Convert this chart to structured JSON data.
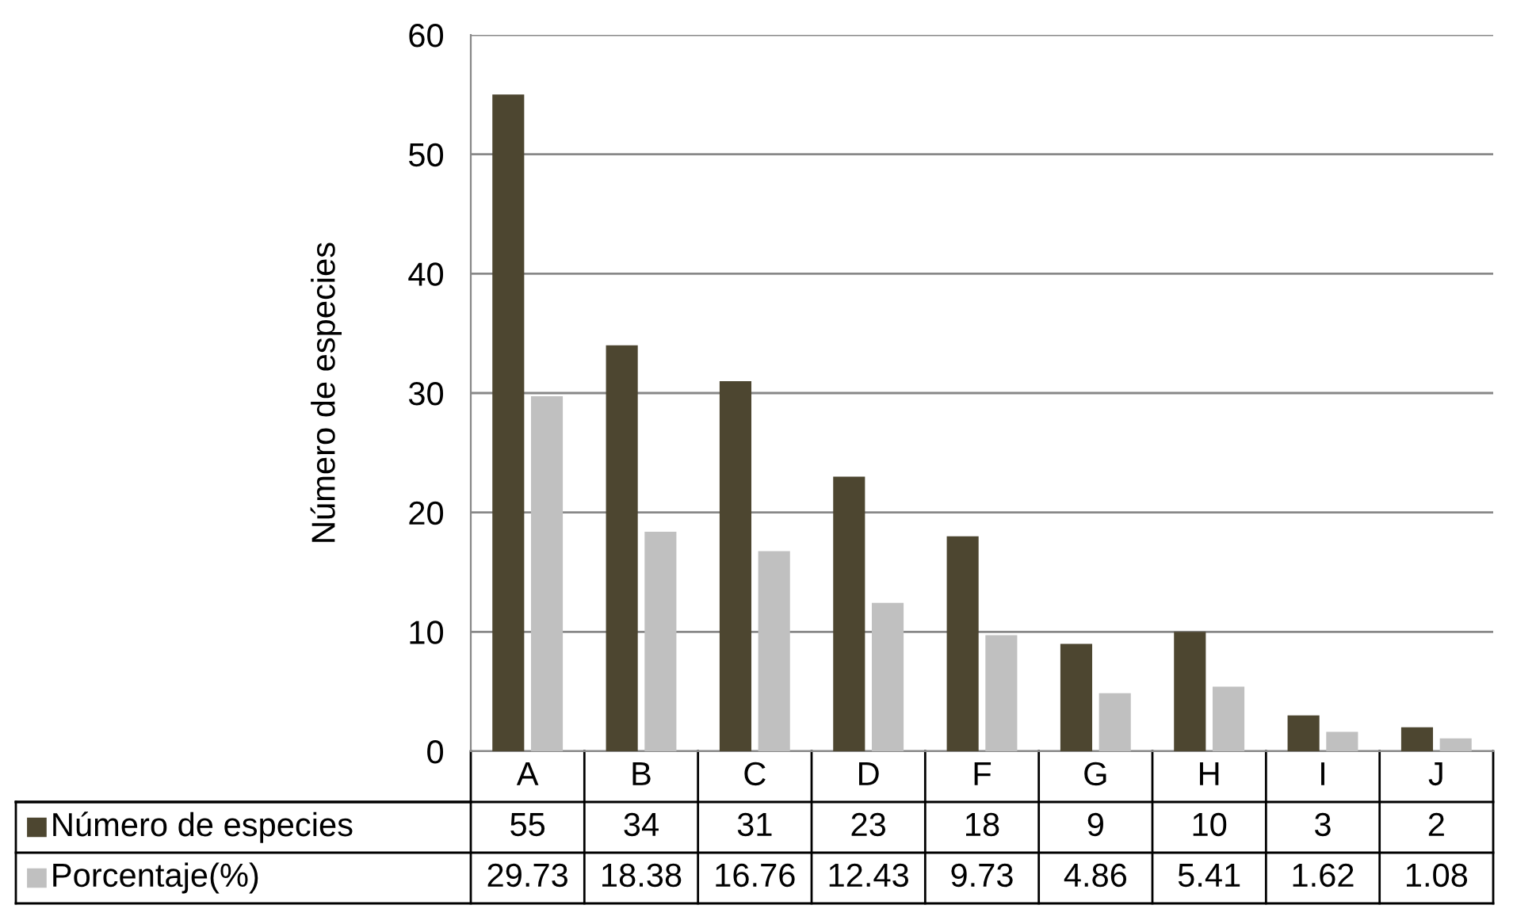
{
  "chart_data": {
    "type": "bar",
    "ylabel": "Número de especies",
    "categories": [
      "A",
      "B",
      "C",
      "D",
      "F",
      "G",
      "H",
      "I",
      "J"
    ],
    "series": [
      {
        "name": "Número de especies",
        "color": "#4d4630",
        "values": [
          55,
          34,
          31,
          23,
          18,
          9,
          10,
          3,
          2
        ]
      },
      {
        "name": "Porcentaje(%)",
        "color": "#c0c0c0",
        "values": [
          29.73,
          18.38,
          16.76,
          12.43,
          9.73,
          4.86,
          5.41,
          1.62,
          1.08
        ]
      }
    ],
    "ylim": [
      0,
      60
    ],
    "yticks": [
      0,
      10,
      20,
      30,
      40,
      50,
      60
    ],
    "grid": "y",
    "data_labels": true,
    "legend": "bottom left"
  }
}
